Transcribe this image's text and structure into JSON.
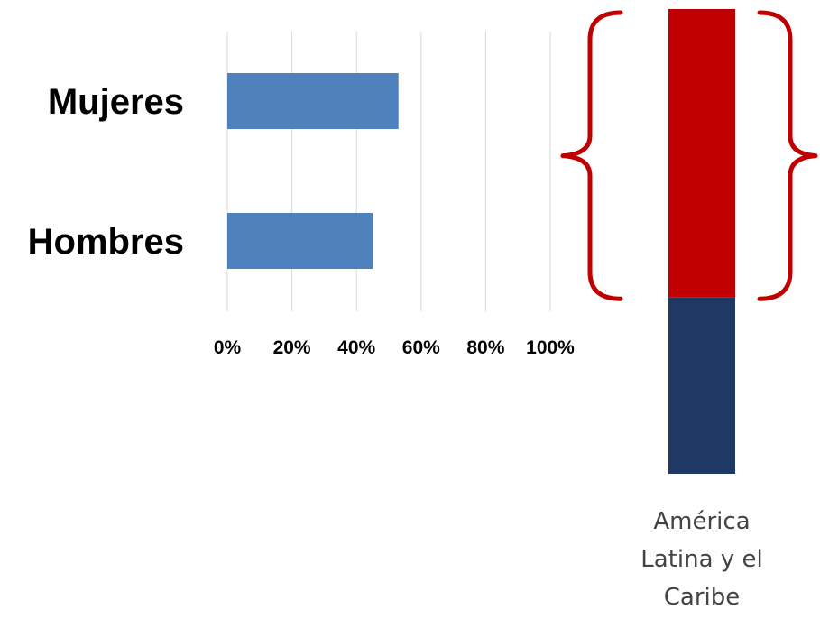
{
  "chart_data": [
    {
      "type": "bar",
      "orientation": "horizontal",
      "categories": [
        "Mujeres",
        "Hombres"
      ],
      "values": [
        53,
        45
      ],
      "xlim": [
        0,
        100
      ],
      "tick_labels": [
        "0%",
        "20%",
        "40%",
        "60%",
        "80%",
        "100%"
      ],
      "ticks": [
        0,
        20,
        40,
        60,
        80,
        100
      ],
      "grid": true,
      "bar_color": "#4f81bd",
      "grid_color": "#d9d9d9"
    },
    {
      "type": "bar",
      "stacked": true,
      "categories": [
        "América Latina y el Caribe"
      ],
      "category_label_lines": [
        "América",
        "Latina y el",
        "Caribe"
      ],
      "series": [
        {
          "values": [
            62
          ]
        },
        {
          "values": [
            38
          ]
        }
      ],
      "colors": {
        "top": "#c00000",
        "bottom": "#1f3864"
      },
      "ylim": [
        0,
        100
      ],
      "annotation": "curly braces enclosing the top segment",
      "brace_color": "#c00000"
    }
  ]
}
